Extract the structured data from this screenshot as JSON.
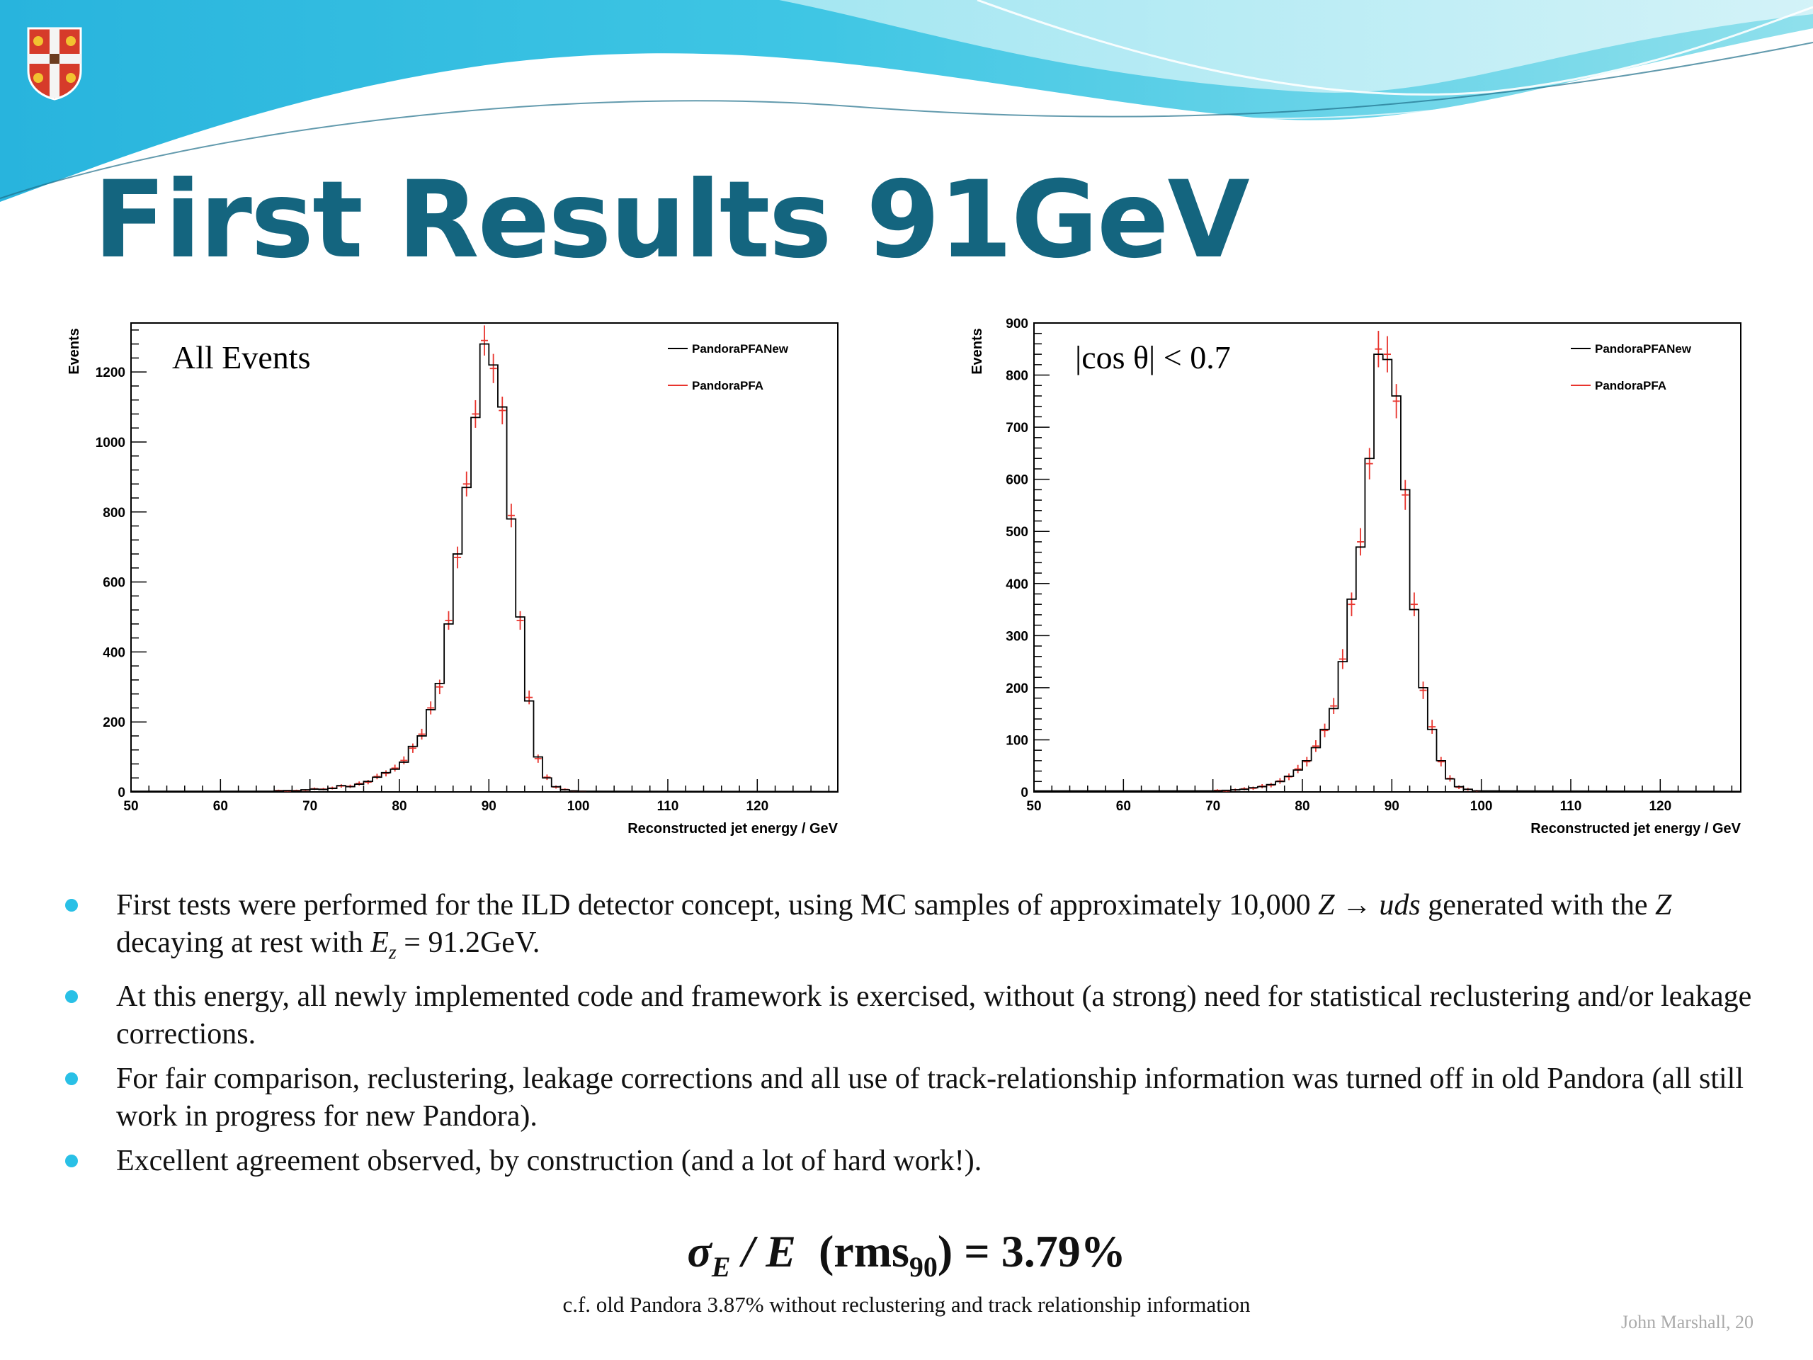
{
  "slide": {
    "title": "First Results 91GeV",
    "footer": "John Marshall, 20",
    "colors": {
      "title": "#14657f",
      "accent": "#29c0e6",
      "wave_dark": "#2aa9d9",
      "wave_light": "#8fe0ec"
    },
    "crest_icon": "university-crest-icon"
  },
  "bullets": [
    {
      "parts": [
        {
          "t": "First tests were performed for the ILD detector concept, using MC samples of approximately 10,000 "
        },
        {
          "t": "Z",
          "i": true
        },
        {
          "t": " → "
        },
        {
          "t": "uds",
          "i": true
        },
        {
          "t": " generated with the "
        },
        {
          "t": "Z",
          "i": true
        },
        {
          "t": " decaying at rest with "
        },
        {
          "t": "E",
          "i": true
        },
        {
          "t": "z",
          "i": true,
          "sub": true
        },
        {
          "t": " = 91.2GeV."
        }
      ]
    },
    {
      "parts": [
        {
          "t": "At this energy, all newly implemented code and framework is exercised, without (a strong) need for statistical reclustering and/or leakage corrections."
        }
      ]
    },
    {
      "parts": [
        {
          "t": "For fair comparison, reclustering, leakage corrections and all use of track-relationship information was turned off in old Pandora (all still work in progress for new Pandora)."
        }
      ]
    },
    {
      "parts": [
        {
          "t": "Excellent agreement observed, by construction (and a lot of hard work!)."
        }
      ]
    }
  ],
  "formula": {
    "sigma": "σ",
    "sigma_sub": "E",
    "slash_e": " / E",
    "rms": "(rms",
    "rms_sub": "90",
    "result": ") = 3.79%"
  },
  "cf_note": "c.f. old Pandora 3.87% without reclustering and track relationship information",
  "chart_data": [
    {
      "type": "histogram",
      "annotation": "All Events",
      "xlabel": "Reconstructed jet energy / GeV",
      "ylabel": "Events",
      "xlim": [
        50,
        129
      ],
      "ylim": [
        0,
        1340
      ],
      "xticks": [
        50,
        60,
        70,
        80,
        90,
        100,
        110,
        120
      ],
      "yticks": [
        0,
        200,
        400,
        600,
        800,
        1000,
        1200
      ],
      "bin_width": 1,
      "legend_position": "top-right",
      "series": [
        {
          "name": "PandoraPFANew",
          "color": "#000000",
          "x_start": 66,
          "values": [
            3,
            4,
            3,
            6,
            8,
            7,
            10,
            18,
            15,
            22,
            30,
            42,
            55,
            65,
            85,
            130,
            160,
            235,
            310,
            480,
            680,
            870,
            1070,
            1280,
            1220,
            1100,
            780,
            500,
            260,
            100,
            40,
            15,
            6,
            3,
            2
          ]
        },
        {
          "name": "PandoraPFA",
          "color": "#e8342d",
          "x_start": 66,
          "values": [
            4,
            3,
            4,
            5,
            9,
            8,
            11,
            17,
            16,
            24,
            28,
            44,
            53,
            68,
            90,
            125,
            165,
            240,
            300,
            490,
            670,
            880,
            1080,
            1290,
            1210,
            1090,
            790,
            490,
            270,
            95,
            42,
            14,
            7,
            3,
            2
          ]
        }
      ]
    },
    {
      "type": "histogram",
      "annotation": "|cos θ| < 0.7",
      "xlabel": "Reconstructed jet energy / GeV",
      "ylabel": "Events",
      "xlim": [
        50,
        129
      ],
      "ylim": [
        0,
        900
      ],
      "xticks": [
        50,
        60,
        70,
        80,
        90,
        100,
        110,
        120
      ],
      "yticks": [
        0,
        100,
        200,
        300,
        400,
        500,
        600,
        700,
        800,
        900
      ],
      "bin_width": 1,
      "legend_position": "top-right",
      "series": [
        {
          "name": "PandoraPFANew",
          "color": "#000000",
          "x_start": 70,
          "values": [
            2,
            3,
            4,
            5,
            8,
            10,
            14,
            20,
            30,
            42,
            60,
            85,
            120,
            160,
            250,
            370,
            470,
            640,
            840,
            830,
            760,
            580,
            350,
            200,
            120,
            60,
            25,
            10,
            5,
            2
          ]
        },
        {
          "name": "PandoraPFA",
          "color": "#e8342d",
          "x_start": 70,
          "values": [
            3,
            2,
            4,
            6,
            7,
            11,
            13,
            21,
            29,
            44,
            58,
            88,
            118,
            165,
            255,
            360,
            480,
            630,
            850,
            840,
            750,
            570,
            360,
            195,
            125,
            58,
            26,
            9,
            5,
            2
          ]
        }
      ]
    }
  ]
}
